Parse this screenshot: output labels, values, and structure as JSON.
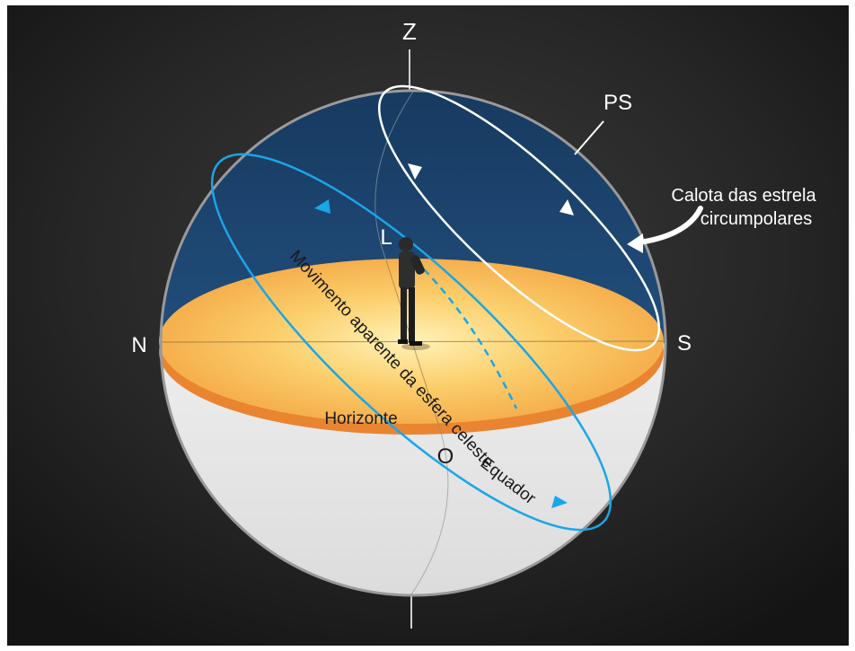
{
  "labels": {
    "zenith": "Z",
    "south_pole": "PS",
    "north": "N",
    "south": "S",
    "east": "L",
    "west": "O",
    "horizon": "Horizonte",
    "equator": "Equador",
    "apparent_motion": "Movimento aparente da esfera celeste",
    "cap_line1": "Calota das estrela",
    "cap_line2": "circumpolares"
  },
  "colors": {
    "sky_upper": "#1f4f7c",
    "sky_lower": "#3f7fb3",
    "horizon_plane": "#f7b048",
    "horizon_rim": "#ee8a33",
    "lower_hemisphere": "#f4f4f4",
    "equator_path": "#1aa6e8",
    "circumpolar_path": "#ffffff"
  },
  "icons": [
    "observer-figure",
    "curved-arrow-icon"
  ]
}
